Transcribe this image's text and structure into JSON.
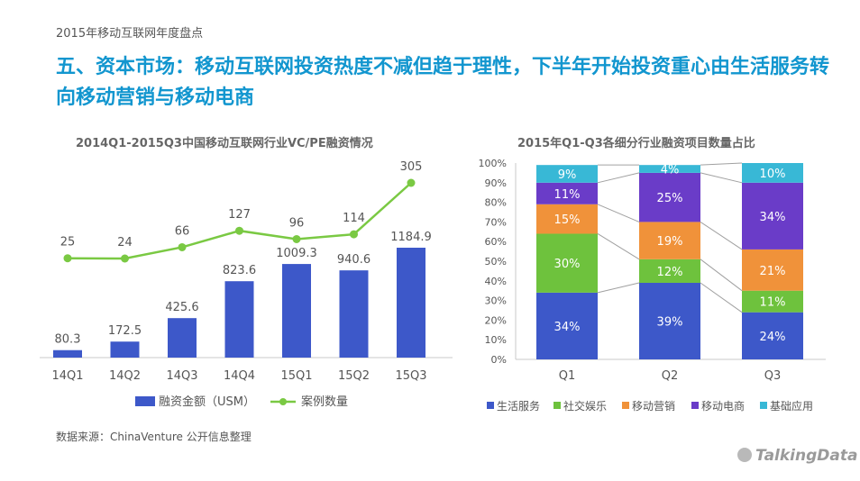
{
  "header": {
    "top_label": "2015年移动互联网年度盘点",
    "headline": "五、资本市场：移动互联网投资热度不减但趋于理性，下半年开始投资重心由生活服务转向移动营销与移动电商"
  },
  "footer": {
    "source": "数据来源：ChinaVenture 公开信息整理",
    "brand": "TalkingData"
  },
  "chart_data": [
    {
      "type": "bar",
      "title": "2014Q1-2015Q3中国移动互联网行业VC/PE融资情况",
      "categories": [
        "14Q1",
        "14Q2",
        "14Q3",
        "14Q4",
        "15Q1",
        "15Q2",
        "15Q3"
      ],
      "series": [
        {
          "name": "融资金额（USM）",
          "type": "bar",
          "color": "#3d58c9",
          "values": [
            80.3,
            172.5,
            425.6,
            823.6,
            1009.3,
            940.6,
            1184.9
          ]
        },
        {
          "name": "案例数量",
          "type": "line",
          "color": "#7ac943",
          "values": [
            25,
            24,
            66,
            127,
            96,
            114,
            305
          ]
        }
      ],
      "legend_position": "bottom",
      "grid": false
    },
    {
      "type": "bar",
      "stacked": true,
      "percent": true,
      "title": "2015年Q1-Q3各细分行业融资项目数量占比",
      "categories": [
        "Q1",
        "Q2",
        "Q3"
      ],
      "y_ticks": [
        "0%",
        "10%",
        "20%",
        "30%",
        "40%",
        "50%",
        "60%",
        "70%",
        "80%",
        "90%",
        "100%"
      ],
      "ylim": [
        0,
        100
      ],
      "series": [
        {
          "name": "生活服务",
          "color": "#3d58c9",
          "values": [
            34,
            39,
            24
          ]
        },
        {
          "name": "社交娱乐",
          "color": "#6ec23d",
          "values": [
            30,
            12,
            11
          ]
        },
        {
          "name": "移动营销",
          "color": "#f0923a",
          "values": [
            15,
            19,
            21
          ]
        },
        {
          "name": "移动电商",
          "color": "#6a3cc8",
          "values": [
            11,
            25,
            34
          ]
        },
        {
          "name": "基础应用",
          "color": "#38b8d6",
          "values": [
            9,
            4,
            10
          ]
        }
      ],
      "legend_position": "bottom",
      "grid": false
    }
  ]
}
